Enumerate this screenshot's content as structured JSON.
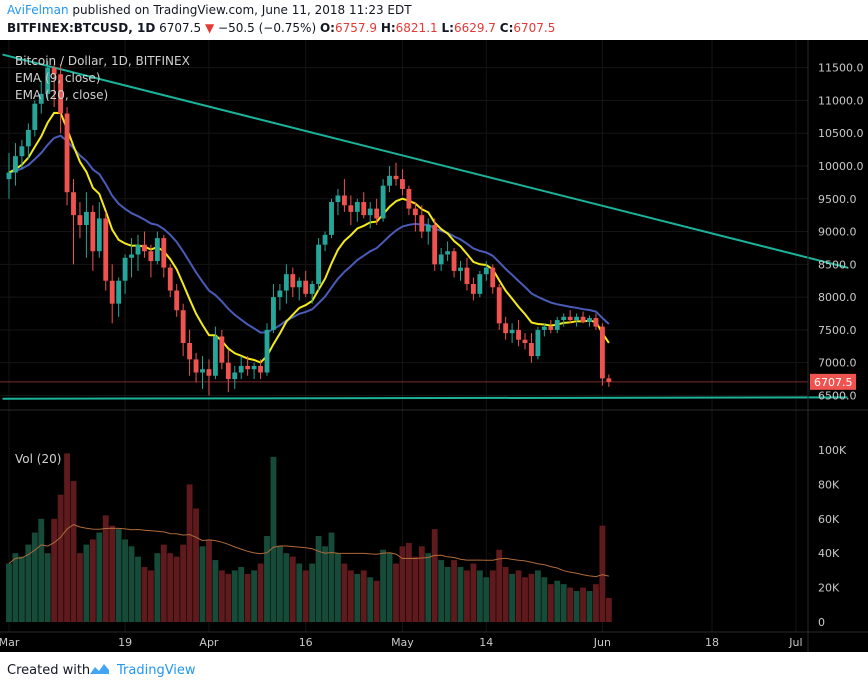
{
  "header": {
    "author": "AviFelman",
    "published_text": "published on TradingView.com, June 11, 2018 11:23 EDT",
    "symbol": "BITFINEX:BTCUSD, 1D",
    "last": "6707.5",
    "change_arrow": "▼",
    "change": "−50.5 (−0.75%)",
    "o_label": "O:",
    "o_value": "6757.9",
    "h_label": "H:",
    "h_value": "6821.1",
    "l_label": "L:",
    "l_value": "6629.7",
    "c_label": "C:",
    "c_value": "6707.5"
  },
  "legend": {
    "title": "Bitcoin / Dollar, 1D, BITFINEX",
    "ema_fast": "EMA (9, close)",
    "ema_slow": "EMA (20, close)",
    "volume": "Vol (20)"
  },
  "footer": {
    "created_with": "Created with",
    "brand": "TradingView",
    "logo_icon": "tradingview-cloud-icon"
  },
  "colors": {
    "background": "#000000",
    "up": "#26a69a",
    "down": "#ef5350",
    "volume_up": "#174b39",
    "volume_down": "#5e1a1c",
    "ema_fast": "#f5ea18",
    "ema_slow": "#4a5bb8",
    "trendline": "#1bb39a",
    "grid": "#141414",
    "axis_text": "#c8c8c8",
    "last_price_tag": "#ef5350",
    "brand_blue": "#2196f3"
  },
  "chart_data": {
    "type": "candlestick",
    "symbol": "BITFINEX:BTCUSD",
    "interval": "1D",
    "price_axis": {
      "min": 6400,
      "max": 11800,
      "ticks": [
        6500,
        7000,
        7500,
        8000,
        8500,
        9000,
        9500,
        10000,
        10500,
        11000,
        11500
      ],
      "tick_labels": [
        "6500.0",
        "7000.0",
        "7500.0",
        "8000.0",
        "8500.0",
        "9000.0",
        "9500.0",
        "10000.0",
        "10500.0",
        "11000.0",
        "11500.0"
      ]
    },
    "volume_axis": {
      "max": 100000,
      "ticks": [
        0,
        20000,
        40000,
        60000,
        80000,
        100000
      ],
      "tick_labels": [
        "0",
        "20K",
        "40K",
        "60K",
        "80K",
        "100K"
      ]
    },
    "time_axis": {
      "labels": [
        "Mar",
        "19",
        "Apr",
        "16",
        "May",
        "14",
        "Jun",
        "18",
        "Jul"
      ],
      "label_day_index": [
        0,
        18,
        31,
        46,
        61,
        74,
        92,
        109,
        122
      ]
    },
    "last_price": 6707.5,
    "horizontal_lines": [
      {
        "price": 6707.5
      }
    ],
    "trendlines": [
      {
        "from": {
          "day": -1,
          "price": 11700
        },
        "to": {
          "day": 130,
          "price": 8450
        }
      },
      {
        "from": {
          "day": -1,
          "price": 6450
        },
        "to": {
          "day": 130,
          "price": 6470
        }
      }
    ],
    "start_date": "2018-03-01",
    "candles": [
      [
        9800,
        10200,
        9500,
        9900,
        34000
      ],
      [
        9900,
        10350,
        9700,
        10150,
        40000
      ],
      [
        10150,
        10400,
        9950,
        10300,
        38000
      ],
      [
        10300,
        10650,
        10100,
        10550,
        45000
      ],
      [
        10550,
        11000,
        10450,
        10950,
        52000
      ],
      [
        10950,
        11300,
        10800,
        11100,
        60000
      ],
      [
        11100,
        11600,
        11000,
        11500,
        40000
      ],
      [
        11500,
        11550,
        10900,
        11400,
        60000
      ],
      [
        11400,
        11550,
        10500,
        10800,
        74000
      ],
      [
        10800,
        10900,
        9400,
        9600,
        98000
      ],
      [
        9600,
        9800,
        8500,
        9250,
        82000
      ],
      [
        9250,
        9450,
        8900,
        9100,
        40000
      ],
      [
        9100,
        9600,
        8600,
        9300,
        45000
      ],
      [
        9300,
        9400,
        8400,
        8700,
        48000
      ],
      [
        8700,
        9450,
        8600,
        9200,
        52000
      ],
      [
        9200,
        9300,
        8100,
        8250,
        62000
      ],
      [
        8250,
        8500,
        7600,
        7900,
        56000
      ],
      [
        7900,
        8300,
        7700,
        8250,
        54000
      ],
      [
        8250,
        8650,
        8050,
        8600,
        48000
      ],
      [
        8600,
        8900,
        8300,
        8650,
        44000
      ],
      [
        8650,
        8950,
        8400,
        8800,
        38000
      ],
      [
        8800,
        9000,
        8600,
        8700,
        32000
      ],
      [
        8700,
        8800,
        8300,
        8550,
        30000
      ],
      [
        8550,
        9000,
        8500,
        8900,
        40000
      ],
      [
        8900,
        8950,
        8300,
        8450,
        45000
      ],
      [
        8450,
        8500,
        8000,
        8100,
        40000
      ],
      [
        8100,
        8200,
        7700,
        7800,
        38000
      ],
      [
        7800,
        7900,
        7100,
        7300,
        45000
      ],
      [
        7300,
        7500,
        6800,
        7050,
        80000
      ],
      [
        7050,
        7150,
        6700,
        6850,
        66000
      ],
      [
        6850,
        7100,
        6600,
        6900,
        44000
      ],
      [
        6900,
        7050,
        6500,
        6800,
        48000
      ],
      [
        6800,
        7550,
        6750,
        7400,
        36000
      ],
      [
        7400,
        7500,
        6900,
        7000,
        30000
      ],
      [
        7000,
        7200,
        6550,
        6750,
        28000
      ],
      [
        6750,
        6950,
        6600,
        6850,
        30000
      ],
      [
        6850,
        7100,
        6750,
        6950,
        32000
      ],
      [
        6950,
        7100,
        6800,
        6900,
        28000
      ],
      [
        6900,
        7000,
        6750,
        6950,
        30000
      ],
      [
        6950,
        7050,
        6750,
        6850,
        34000
      ],
      [
        6850,
        7600,
        6800,
        7500,
        50000
      ],
      [
        7500,
        8200,
        7450,
        8000,
        96000
      ],
      [
        8000,
        8200,
        7800,
        8100,
        44000
      ],
      [
        8100,
        8500,
        7900,
        8350,
        40000
      ],
      [
        8350,
        8450,
        8000,
        8150,
        38000
      ],
      [
        8150,
        8300,
        7950,
        8250,
        34000
      ],
      [
        8250,
        8400,
        8000,
        8050,
        30000
      ],
      [
        8050,
        8250,
        7900,
        8200,
        34000
      ],
      [
        8200,
        8900,
        8100,
        8800,
        50000
      ],
      [
        8800,
        9000,
        8700,
        8950,
        44000
      ],
      [
        8950,
        9500,
        8900,
        9450,
        52000
      ],
      [
        9450,
        9650,
        9250,
        9550,
        40000
      ],
      [
        9550,
        9800,
        9300,
        9400,
        34000
      ],
      [
        9400,
        9550,
        9100,
        9300,
        30000
      ],
      [
        9300,
        9500,
        9150,
        9450,
        28000
      ],
      [
        9450,
        9600,
        9200,
        9250,
        30000
      ],
      [
        9250,
        9450,
        9050,
        9350,
        26000
      ],
      [
        9350,
        9500,
        9100,
        9200,
        24000
      ],
      [
        9200,
        9800,
        9150,
        9700,
        42000
      ],
      [
        9700,
        10000,
        9600,
        9850,
        40000
      ],
      [
        9850,
        10050,
        9700,
        9800,
        34000
      ],
      [
        9800,
        9950,
        9550,
        9650,
        44000
      ],
      [
        9650,
        9700,
        9250,
        9350,
        46000
      ],
      [
        9350,
        9450,
        9000,
        9250,
        38000
      ],
      [
        9250,
        9400,
        8900,
        9000,
        44000
      ],
      [
        9000,
        9200,
        8800,
        9100,
        40000
      ],
      [
        9100,
        9200,
        8400,
        8500,
        54000
      ],
      [
        8500,
        8750,
        8400,
        8650,
        36000
      ],
      [
        8650,
        8850,
        8550,
        8700,
        32000
      ],
      [
        8700,
        8750,
        8300,
        8400,
        36000
      ],
      [
        8400,
        8550,
        8250,
        8450,
        32000
      ],
      [
        8450,
        8600,
        8100,
        8200,
        30000
      ],
      [
        8200,
        8300,
        7950,
        8050,
        34000
      ],
      [
        8050,
        8400,
        8000,
        8350,
        30000
      ],
      [
        8350,
        8550,
        8250,
        8450,
        26000
      ],
      [
        8450,
        8500,
        8050,
        8150,
        30000
      ],
      [
        8150,
        8200,
        7500,
        7600,
        42000
      ],
      [
        7600,
        7700,
        7350,
        7450,
        32000
      ],
      [
        7450,
        7600,
        7300,
        7500,
        28000
      ],
      [
        7500,
        7650,
        7250,
        7350,
        30000
      ],
      [
        7350,
        7450,
        7200,
        7300,
        26000
      ],
      [
        7300,
        7450,
        7000,
        7100,
        28000
      ],
      [
        7100,
        7550,
        7050,
        7500,
        30000
      ],
      [
        7500,
        7600,
        7400,
        7550,
        26000
      ],
      [
        7550,
        7650,
        7450,
        7500,
        22000
      ],
      [
        7500,
        7700,
        7450,
        7650,
        24000
      ],
      [
        7650,
        7750,
        7550,
        7700,
        22000
      ],
      [
        7700,
        7800,
        7600,
        7650,
        20000
      ],
      [
        7650,
        7750,
        7550,
        7700,
        18000
      ],
      [
        7700,
        7780,
        7600,
        7620,
        20000
      ],
      [
        7620,
        7720,
        7550,
        7680,
        18000
      ],
      [
        7680,
        7750,
        7500,
        7550,
        22000
      ],
      [
        7550,
        7600,
        6650,
        6760,
        56000
      ],
      [
        6760,
        6820,
        6630,
        6707.5,
        14000
      ]
    ],
    "ema_fast_period": 9,
    "ema_slow_period": 20,
    "volume_ma_period": 20
  }
}
